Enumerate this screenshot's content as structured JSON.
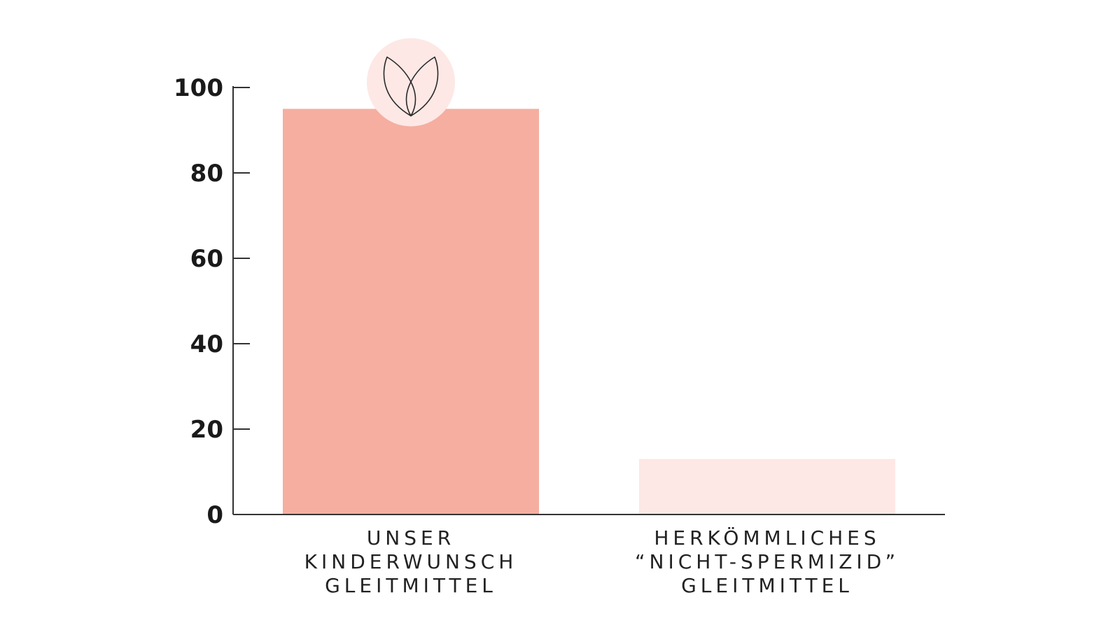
{
  "chart_data": {
    "type": "bar",
    "categories": [
      [
        "UNSER",
        "KINDERWUNSCH",
        "GLEITMITTEL"
      ],
      [
        "HERKÖMMLICHES",
        "“NICHT-SPERMIZID”",
        "GLEITMITTEL"
      ]
    ],
    "values": [
      95,
      13
    ],
    "bar_colors": [
      "#f5aea0",
      "#fde8e5"
    ],
    "ylim": [
      0,
      100
    ],
    "yticks": [
      0,
      20,
      40,
      60,
      80,
      100
    ],
    "title": "",
    "xlabel": "",
    "ylabel": "",
    "grid": false,
    "badge": {
      "icon": "lotus-icon",
      "color": "#fde8e5",
      "on_category": 0
    }
  }
}
